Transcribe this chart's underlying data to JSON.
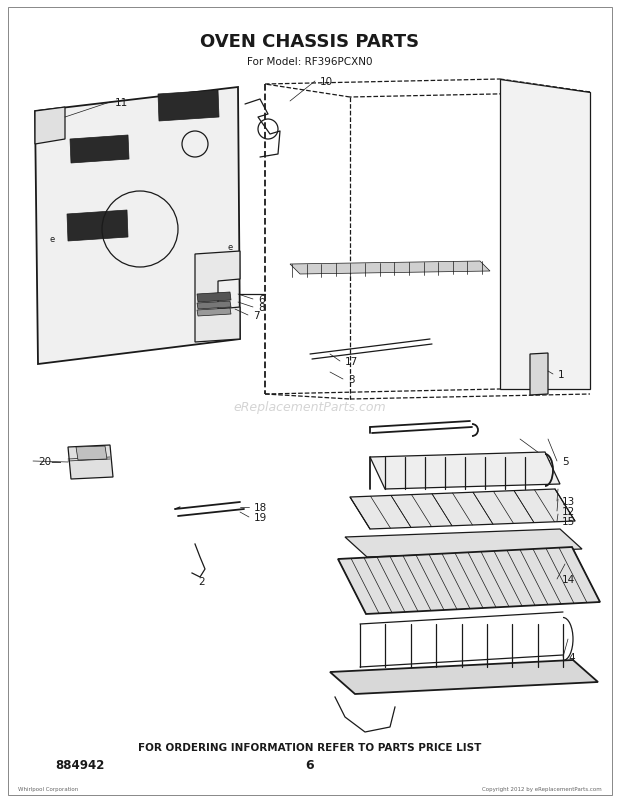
{
  "title": "OVEN CHASSIS PARTS",
  "subtitle": "For Model: RF396PCXN0",
  "footer": "FOR ORDERING INFORMATION REFER TO PARTS PRICE LIST",
  "part_number": "884942",
  "page_number": "6",
  "bg_color": "#ffffff",
  "lc": "#1a1a1a",
  "watermark": "eReplacementParts.com",
  "copyright_left": "Whirlpool Corporation",
  "copyright_right": "Copyright 2012 by eReplacementParts.com",
  "lw": 0.9,
  "lw_thin": 0.5,
  "lw_thick": 1.3
}
